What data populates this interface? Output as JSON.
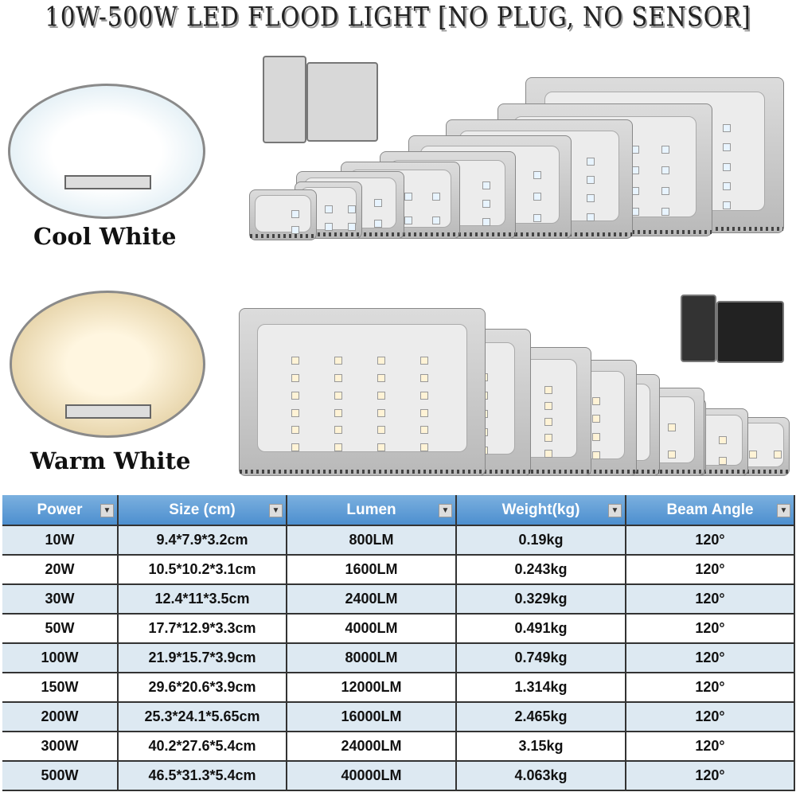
{
  "title": "10W-500W LED FLOOD LIGHT [NO PLUG, NO SENSOR]",
  "variants": [
    {
      "label": "Cool White",
      "glow": "#f4fbff",
      "lamp_color": "#e8f4ff"
    },
    {
      "label": "Warm White",
      "glow": "#f7e9c4",
      "lamp_color": "#fff3d6"
    }
  ],
  "table": {
    "headers": [
      "Power",
      "Size (cm)",
      "Lumen",
      "Weight(kg)",
      "Beam Angle"
    ],
    "header_color": "#5b9bd5",
    "rows": [
      [
        "10W",
        "9.4*7.9*3.2cm",
        "800LM",
        "0.19kg",
        "120°"
      ],
      [
        "20W",
        "10.5*10.2*3.1cm",
        "1600LM",
        "0.243kg",
        "120°"
      ],
      [
        "30W",
        "12.4*11*3.5cm",
        "2400LM",
        "0.329kg",
        "120°"
      ],
      [
        "50W",
        "17.7*12.9*3.3cm",
        "4000LM",
        "0.491kg",
        "120°"
      ],
      [
        "100W",
        "21.9*15.7*3.9cm",
        "8000LM",
        "0.749kg",
        "120°"
      ],
      [
        "150W",
        "29.6*20.6*3.9cm",
        "12000LM",
        "1.314kg",
        "120°"
      ],
      [
        "200W",
        "25.3*24.1*5.65cm",
        "16000LM",
        "2.465kg",
        "120°"
      ],
      [
        "300W",
        "40.2*27.6*5.4cm",
        "24000LM",
        "3.15kg",
        "120°"
      ],
      [
        "500W",
        "46.5*31.3*5.4cm",
        "40000LM",
        "4.063kg",
        "120°"
      ]
    ]
  }
}
